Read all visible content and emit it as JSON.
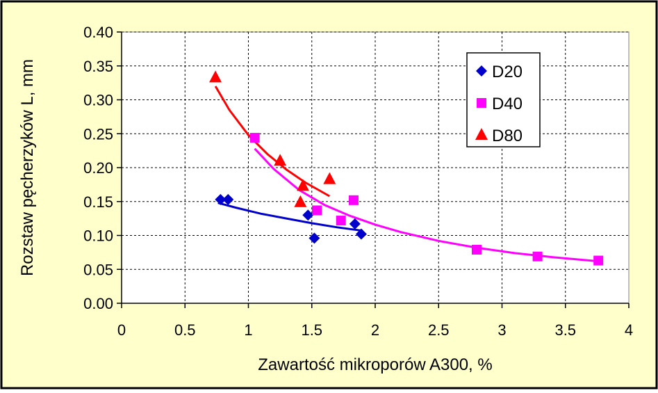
{
  "chart_data": {
    "type": "scatter",
    "title": "",
    "xlabel": "Zawartość mikroporów A300, %",
    "ylabel": "Rozstaw pęcherzyków L, mm",
    "xlim": [
      0,
      4
    ],
    "ylim": [
      0,
      0.4
    ],
    "x_ticks": [
      "0",
      "0.5",
      "1",
      "1.5",
      "2",
      "2.5",
      "3",
      "3.5",
      "4"
    ],
    "y_ticks": [
      "0.00",
      "0.05",
      "0.10",
      "0.15",
      "0.20",
      "0.25",
      "0.30",
      "0.35",
      "0.40"
    ],
    "grid": true,
    "legend_position": "top-right",
    "series": [
      {
        "name": "D20",
        "marker": "diamond",
        "color": "#0000CC",
        "points": [
          [
            0.78,
            0.153
          ],
          [
            0.84,
            0.153
          ],
          [
            1.47,
            0.13
          ],
          [
            1.52,
            0.096
          ],
          [
            1.84,
            0.117
          ],
          [
            1.89,
            0.102
          ]
        ],
        "trend": [
          [
            0.76,
            0.148
          ],
          [
            0.9,
            0.141
          ],
          [
            1.1,
            0.132
          ],
          [
            1.3,
            0.125
          ],
          [
            1.5,
            0.118
          ],
          [
            1.7,
            0.112
          ],
          [
            1.9,
            0.107
          ]
        ]
      },
      {
        "name": "D40",
        "marker": "square",
        "color": "#FF00FF",
        "points": [
          [
            1.05,
            0.244
          ],
          [
            1.54,
            0.137
          ],
          [
            1.73,
            0.122
          ],
          [
            1.83,
            0.152
          ],
          [
            2.8,
            0.079
          ],
          [
            3.28,
            0.069
          ],
          [
            3.76,
            0.063
          ]
        ],
        "trend": [
          [
            1.05,
            0.228
          ],
          [
            1.2,
            0.198
          ],
          [
            1.4,
            0.167
          ],
          [
            1.6,
            0.145
          ],
          [
            1.8,
            0.129
          ],
          [
            2.0,
            0.116
          ],
          [
            2.2,
            0.105
          ],
          [
            2.5,
            0.092
          ],
          [
            2.8,
            0.082
          ],
          [
            3.1,
            0.074
          ],
          [
            3.4,
            0.068
          ],
          [
            3.76,
            0.062
          ]
        ]
      },
      {
        "name": "D80",
        "marker": "triangle",
        "color": "#FF0000",
        "points": [
          [
            0.74,
            0.333
          ],
          [
            1.25,
            0.21
          ],
          [
            1.41,
            0.149
          ],
          [
            1.43,
            0.173
          ],
          [
            1.64,
            0.183
          ]
        ],
        "trend": [
          [
            0.74,
            0.32
          ],
          [
            0.85,
            0.285
          ],
          [
            1.0,
            0.248
          ],
          [
            1.15,
            0.22
          ],
          [
            1.3,
            0.197
          ],
          [
            1.45,
            0.178
          ],
          [
            1.64,
            0.158
          ]
        ]
      }
    ]
  }
}
